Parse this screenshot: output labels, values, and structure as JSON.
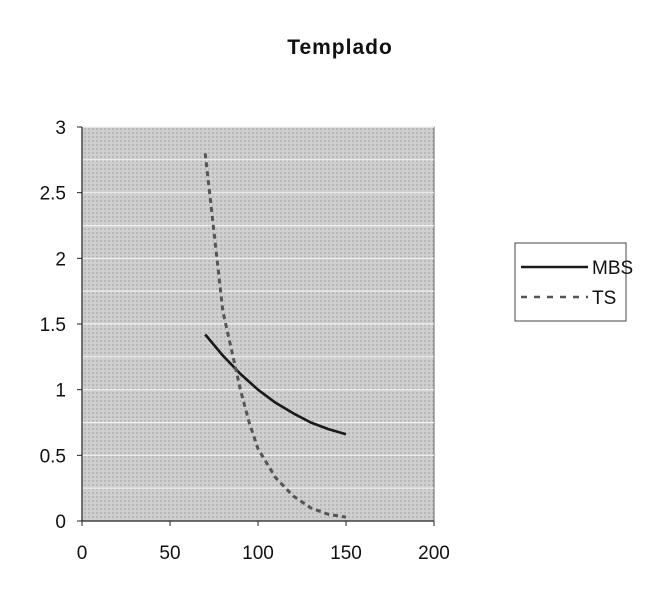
{
  "chart_data": {
    "type": "line",
    "title": "Templado",
    "xlabel": "",
    "ylabel": "",
    "xlim": [
      0,
      200
    ],
    "ylim": [
      0,
      3
    ],
    "xticks": [
      0,
      50,
      100,
      150,
      200
    ],
    "yticks": [
      0,
      0.5,
      1,
      1.5,
      2,
      2.5,
      3
    ],
    "ytick_labels": [
      "0",
      "0.5",
      "1",
      "1.5",
      "2",
      "2.5",
      "3"
    ],
    "grid": true,
    "legend_position": "right",
    "series": [
      {
        "name": "MBS",
        "style": "solid",
        "color": "#1a1a1a",
        "points": [
          [
            70,
            1.42
          ],
          [
            80,
            1.26
          ],
          [
            90,
            1.12
          ],
          [
            100,
            1.0
          ],
          [
            110,
            0.9
          ],
          [
            120,
            0.82
          ],
          [
            130,
            0.75
          ],
          [
            140,
            0.7
          ],
          [
            150,
            0.66
          ]
        ]
      },
      {
        "name": "TS",
        "style": "dashed",
        "color": "#555555",
        "points": [
          [
            70,
            2.8
          ],
          [
            75,
            2.2
          ],
          [
            80,
            1.6
          ],
          [
            85,
            1.3
          ],
          [
            90,
            1.0
          ],
          [
            95,
            0.75
          ],
          [
            100,
            0.55
          ],
          [
            110,
            0.33
          ],
          [
            120,
            0.19
          ],
          [
            130,
            0.1
          ],
          [
            140,
            0.05
          ],
          [
            150,
            0.03
          ]
        ]
      }
    ]
  }
}
